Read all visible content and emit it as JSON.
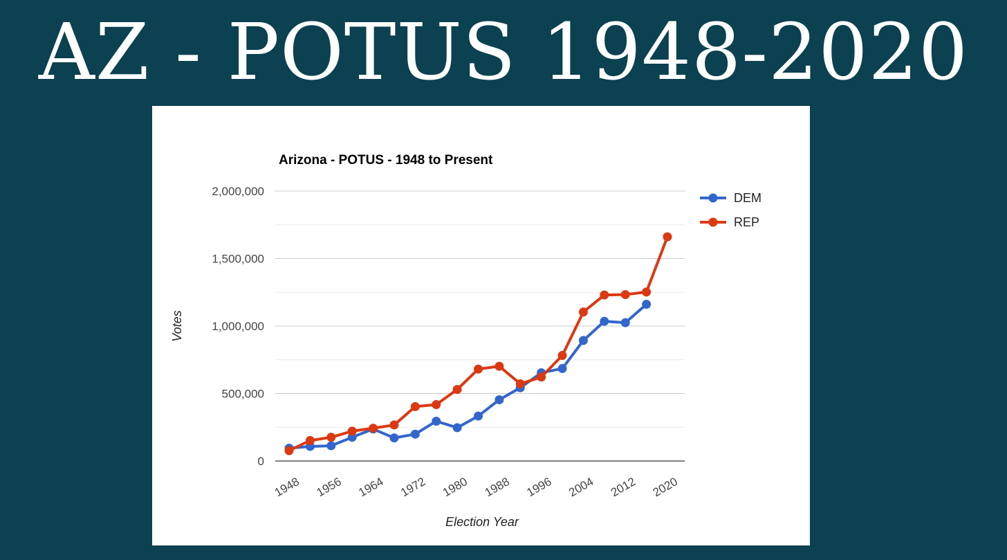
{
  "slide": {
    "title": "AZ - POTUS 1948-2020"
  },
  "colors": {
    "background": "#0b4150",
    "dem": "#3366cc",
    "rep": "#dc3912",
    "grid": "#cccccc"
  },
  "chart_data": {
    "type": "line",
    "title": "Arizona - POTUS - 1948 to Present",
    "xlabel": "Election Year",
    "ylabel": "Votes",
    "x": [
      1948,
      1952,
      1956,
      1960,
      1964,
      1968,
      1972,
      1976,
      1980,
      1984,
      1988,
      1992,
      1996,
      2000,
      2004,
      2008,
      2012,
      2016,
      2020
    ],
    "x_tick_labels": [
      "1948",
      "1956",
      "1964",
      "1972",
      "1980",
      "1988",
      "1996",
      "2004",
      "2012",
      "2020"
    ],
    "y_tick_labels": [
      "0",
      "500,000",
      "1,000,000",
      "1,500,000",
      "2,000,000"
    ],
    "ylim": [
      0,
      2000000
    ],
    "gridlines": true,
    "legend_position": "right",
    "series": [
      {
        "name": "DEM",
        "color": "#3366cc",
        "values": [
          95000,
          108000,
          113000,
          176000,
          237000,
          171000,
          199000,
          295000,
          247000,
          333000,
          454000,
          543000,
          654000,
          685000,
          893000,
          1035000,
          1025000,
          1161000,
          null
        ]
      },
      {
        "name": "REP",
        "color": "#dc3912",
        "values": [
          77000,
          152000,
          176000,
          221000,
          243000,
          267000,
          403000,
          418000,
          530000,
          681000,
          702000,
          572000,
          622000,
          782000,
          1104000,
          1230000,
          1233000,
          1252000,
          1661000
        ]
      }
    ]
  }
}
